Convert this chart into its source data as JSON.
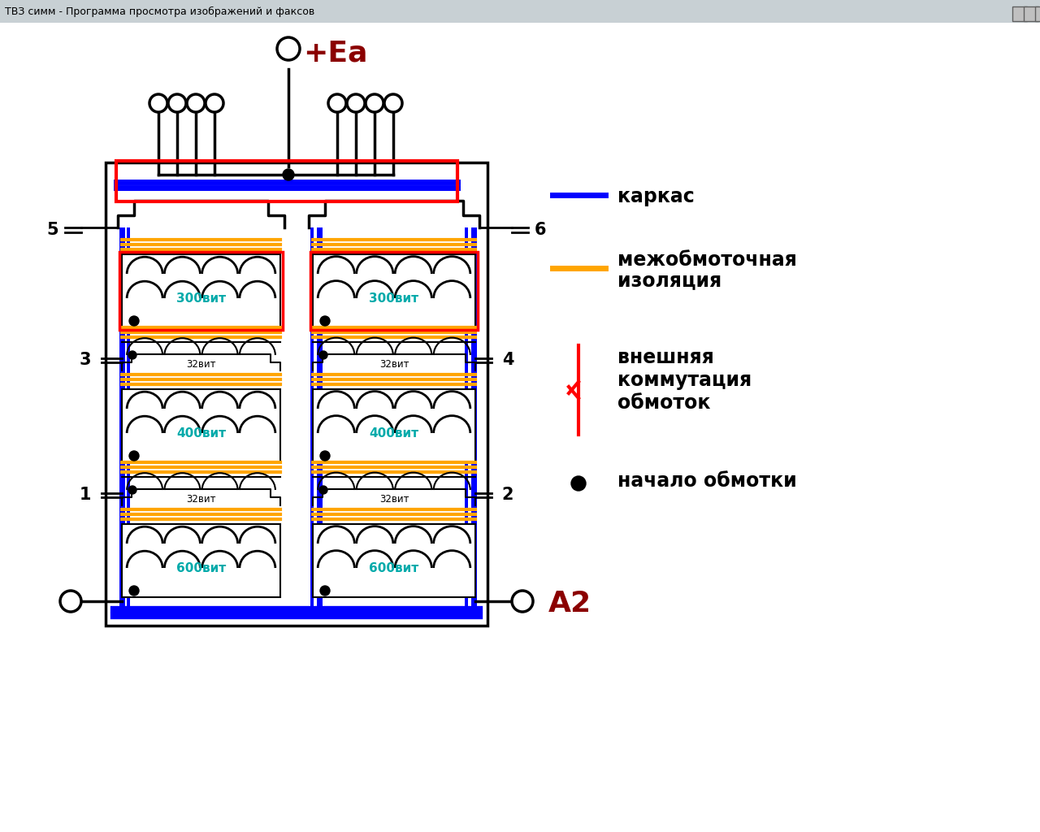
{
  "title_bar": "ТВЗ симм - Программа просмотра изображений и факсов",
  "bg_color": "#f0f0f0",
  "ea_label": "+Ea",
  "a2_label": "A2",
  "blue_color": "#0000ff",
  "red_color": "#ff0000",
  "orange_color": "#ffa500",
  "cyan_color": "#00aaaa",
  "dark_red": "#8b0000",
  "black": "#000000",
  "cyan_wire": "#00b0b0"
}
